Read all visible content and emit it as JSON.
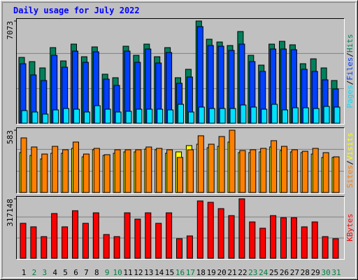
{
  "chart_data": [
    {
      "type": "bar",
      "title": "Daily usage for July 2022",
      "categories": [
        "1",
        "2",
        "3",
        "4",
        "5",
        "6",
        "7",
        "8",
        "9",
        "10",
        "11",
        "12",
        "13",
        "14",
        "15",
        "16",
        "17",
        "18",
        "19",
        "20",
        "21",
        "22",
        "23",
        "24",
        "25",
        "26",
        "27",
        "28",
        "29",
        "30",
        "31"
      ],
      "category_label_colors": [
        "#000000",
        "#008040",
        "#008040",
        "#000000",
        "#000000",
        "#000000",
        "#000000",
        "#000000",
        "#008040",
        "#008040",
        "#000000",
        "#000000",
        "#000000",
        "#000000",
        "#000000",
        "#008040",
        "#008040",
        "#000000",
        "#000000",
        "#000000",
        "#000000",
        "#000000",
        "#008040",
        "#008040",
        "#000000",
        "#000000",
        "#000000",
        "#000000",
        "#000000",
        "#008040",
        "#008040"
      ],
      "legend_separator": "/",
      "ylim": [
        0,
        7073
      ],
      "yticks": [
        7073
      ],
      "series": [
        {
          "name": "Hits",
          "color": "#00805c",
          "values": [
            4554,
            4263,
            3827,
            5232,
            4312,
            5474,
            4602,
            5281,
            3391,
            3149,
            5329,
            4699,
            5474,
            4602,
            5232,
            3149,
            3730,
            7073,
            5813,
            5620,
            5377,
            6346,
            4699,
            4021,
            5474,
            5668,
            5426,
            4118,
            4457,
            3827,
            2955
          ]
        },
        {
          "name": "Files",
          "color": "#0040ff",
          "values": [
            4118,
            3343,
            2955,
            4699,
            3876,
            4990,
            4215,
            4942,
            3052,
            2616,
            4990,
            4215,
            5135,
            4167,
            4893,
            2762,
            3198,
            6686,
            5378,
            5329,
            5039,
            5475,
            4264,
            3585,
            5135,
            5135,
            5087,
            3731,
            3585,
            3004,
            2374
          ]
        },
        {
          "name": "Pages",
          "color": "#00e0ff",
          "values": [
            872,
            775,
            630,
            921,
            1017,
            969,
            775,
            1211,
            969,
            775,
            824,
            969,
            969,
            969,
            921,
            1308,
            775,
            1114,
            1017,
            1017,
            1017,
            1260,
            1114,
            969,
            1308,
            921,
            1066,
            1066,
            1017,
            1163,
            1114
          ]
        }
      ]
    },
    {
      "type": "bar",
      "ylim": [
        0,
        583
      ],
      "yticks": [
        583
      ],
      "series": [
        {
          "name": "Visits",
          "color": "#ffff00",
          "values": [
            373,
            347,
            314,
            367,
            367,
            413,
            334,
            400,
            347,
            367,
            380,
            380,
            406,
            400,
            367,
            380,
            439,
            452,
            419,
            432,
            472,
            373,
            373,
            380,
            426,
            393,
            380,
            373,
            360,
            328,
            328
          ]
        },
        {
          "name": "Sites",
          "color": "#ff8000",
          "values": [
            511,
            426,
            360,
            432,
            400,
            472,
            360,
            413,
            354,
            400,
            400,
            400,
            426,
            413,
            400,
            328,
            400,
            531,
            452,
            524,
            583,
            393,
            400,
            413,
            485,
            432,
            400,
            386,
            413,
            373,
            334
          ]
        }
      ]
    },
    {
      "type": "bar",
      "ylim": [
        0,
        317148
      ],
      "yticks": [
        317148
      ],
      "series": [
        {
          "name": "KBytes",
          "color": "#ff0000",
          "values": [
            186550,
            167895,
            115661,
            238784,
            167895,
            253708,
            186550,
            242515,
            126854,
            115661,
            242515,
            208936,
            242515,
            186550,
            242515,
            104468,
            119392,
            305942,
            298480,
            264901,
            227591,
            317148,
            194012,
            160433,
            227591,
            216398,
            216398,
            167895,
            194012,
            115661,
            104468
          ]
        }
      ]
    }
  ]
}
